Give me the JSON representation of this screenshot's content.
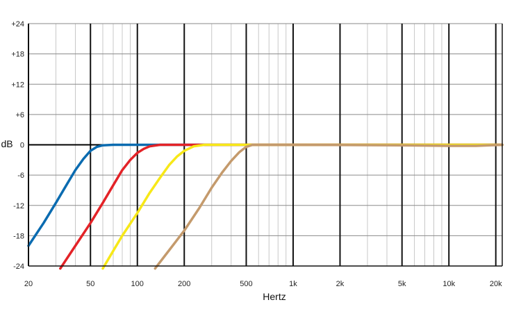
{
  "chart_data": {
    "type": "line",
    "title": "",
    "xlabel": "Hertz",
    "ylabel": "dB",
    "x_scale": "log",
    "xlim": [
      20,
      22000
    ],
    "ylim": [
      -24,
      24
    ],
    "x_ticks": [
      20,
      50,
      100,
      200,
      500,
      1000,
      2000,
      5000,
      10000,
      20000
    ],
    "x_tick_labels": [
      "20",
      "50",
      "100",
      "200",
      "500",
      "1k",
      "2k",
      "5k",
      "10k",
      "20k"
    ],
    "y_ticks": [
      24,
      18,
      12,
      6,
      0,
      -6,
      -12,
      -18,
      -24
    ],
    "y_tick_labels": [
      "+24",
      "+18",
      "+12",
      "+6",
      "0",
      "-6",
      "-12",
      "-18",
      "-24"
    ],
    "grid": true,
    "series": [
      {
        "color": "#0a6bb0",
        "x": [
          20,
          25,
          30,
          35,
          40,
          45,
          50,
          55,
          60,
          70,
          80,
          100,
          200,
          500,
          1000,
          10000,
          22000
        ],
        "y": [
          -20,
          -15.5,
          -11.5,
          -8,
          -5,
          -2.8,
          -1.2,
          -0.4,
          -0.1,
          0,
          0,
          0,
          0,
          0,
          0,
          0,
          0
        ]
      },
      {
        "color": "#e32227",
        "x": [
          32,
          40,
          50,
          60,
          70,
          80,
          90,
          100,
          110,
          120,
          140,
          200,
          500,
          1000,
          10000,
          22000
        ],
        "y": [
          -24.5,
          -20,
          -15.5,
          -11.5,
          -8,
          -5,
          -3,
          -1.6,
          -0.8,
          -0.3,
          0,
          0,
          0,
          0,
          0,
          0
        ]
      },
      {
        "color": "#f7e818",
        "x": [
          60,
          70,
          80,
          100,
          120,
          140,
          160,
          180,
          200,
          230,
          270,
          500,
          1000,
          10000,
          22000
        ],
        "y": [
          -24.5,
          -21,
          -18,
          -13.5,
          -9.5,
          -6.5,
          -4,
          -2.3,
          -1.2,
          -0.3,
          0,
          0,
          0,
          0,
          0
        ]
      },
      {
        "color": "#c49a6c",
        "x": [
          130,
          150,
          200,
          250,
          300,
          350,
          400,
          450,
          500,
          550,
          1000,
          5000,
          10000,
          15000,
          22000
        ],
        "y": [
          -24.5,
          -22,
          -17,
          -12.5,
          -8.5,
          -5.5,
          -3.2,
          -1.5,
          -0.4,
          0,
          0,
          -0.1,
          -0.2,
          -0.2,
          0
        ]
      }
    ]
  }
}
